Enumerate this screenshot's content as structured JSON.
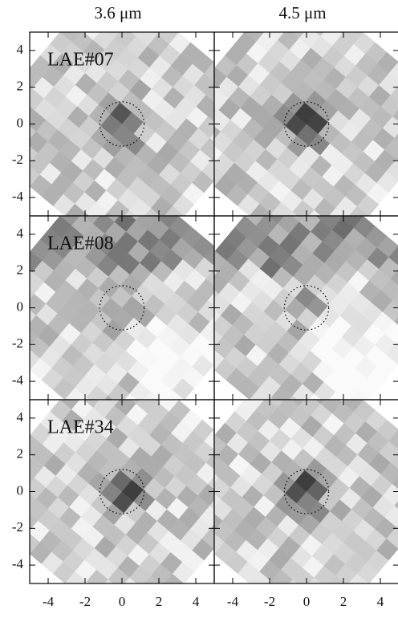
{
  "chart_data": {
    "type": "image_grid",
    "columns": [
      "3.6 μm",
      "4.5 μm"
    ],
    "rows": [
      "LAE#07",
      "LAE#08",
      "LAE#34"
    ],
    "xlim": [
      -5,
      5
    ],
    "ylim": [
      -5,
      5
    ],
    "xticks": [
      -4,
      -2,
      0,
      2,
      4
    ],
    "yticks": [
      -4,
      -2,
      0,
      2,
      4
    ],
    "aperture_radius": 1.2
  }
}
